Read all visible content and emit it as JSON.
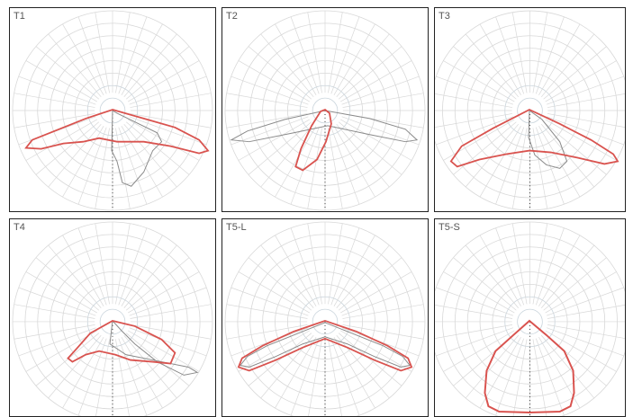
{
  "panels": [
    {
      "label": "T1"
    },
    {
      "label": "T2"
    },
    {
      "label": "T3"
    },
    {
      "label": "T4"
    },
    {
      "label": "T5-L"
    },
    {
      "label": "T5-S"
    }
  ],
  "colors": {
    "grid": "#d8d8d8",
    "inner_grid": "#c9d4dc",
    "red_curve": "#d9534f",
    "grey_curve": "#8a8a8a",
    "frame": "#222222"
  }
}
